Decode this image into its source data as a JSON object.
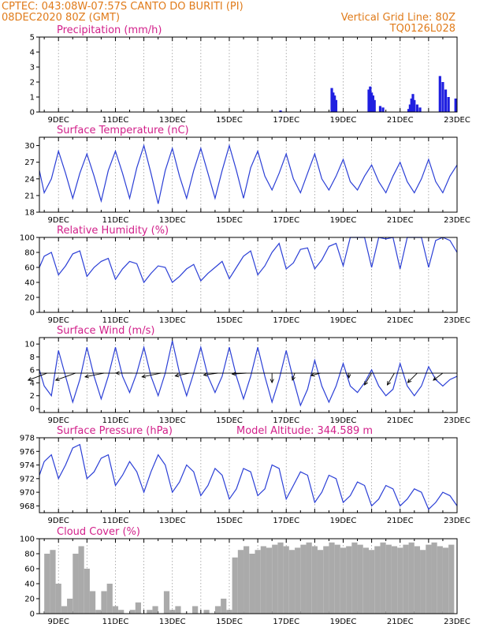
{
  "header": {
    "left_line1": "CPTEC:   043:08W-07:57S   CANTO DO BURITI (PI)",
    "left_line2": "08DEC2020 80Z (GMT)",
    "right_line1": "Vertical Grid Line: 80Z",
    "right_line2": "TQ0126L028"
  },
  "colors": {
    "header": "#e07b1a",
    "title": "#d2208a",
    "line": "#2b3fd6",
    "precip": "#1f1fe0",
    "cloud": "#aaaaaa"
  },
  "chart_data": [
    {
      "type": "bar",
      "title": "Precipitation (mm/h)",
      "ylim": [
        0,
        5
      ],
      "yticks": [
        "0",
        "1",
        "2",
        "3",
        "4",
        "5"
      ],
      "xticks": [
        "9DEC",
        "11DEC",
        "13DEC",
        "15DEC",
        "17DEC",
        "19DEC",
        "21DEC",
        "23DEC"
      ],
      "xlim_days": [
        8.33,
        23.0
      ],
      "x_days": [
        16.8,
        18.6,
        18.65,
        18.7,
        18.75,
        19.9,
        19.95,
        20.0,
        20.05,
        20.1,
        20.3,
        20.4,
        21.3,
        21.35,
        21.4,
        21.45,
        21.5,
        21.6,
        21.7,
        22.4,
        22.5,
        22.6,
        22.7,
        22.95
      ],
      "values": [
        0.1,
        1.6,
        1.3,
        1.1,
        0.8,
        1.5,
        1.7,
        1.3,
        1.1,
        0.8,
        0.4,
        0.3,
        0.2,
        0.5,
        0.9,
        1.2,
        0.8,
        0.5,
        0.3,
        2.4,
        2.0,
        1.5,
        1.0,
        0.9
      ]
    },
    {
      "type": "line",
      "title": "Surface Temperature (nC)",
      "ylim": [
        18,
        31.5
      ],
      "yticks": [
        "18",
        "21",
        "24",
        "27",
        "30"
      ],
      "xticks": [
        "9DEC",
        "11DEC",
        "13DEC",
        "15DEC",
        "17DEC",
        "19DEC",
        "21DEC",
        "23DEC"
      ],
      "x_days": [
        8.33,
        8.5,
        8.75,
        9.0,
        9.25,
        9.5,
        9.75,
        10.0,
        10.25,
        10.5,
        10.75,
        11.0,
        11.25,
        11.5,
        11.75,
        12.0,
        12.25,
        12.5,
        12.75,
        13.0,
        13.25,
        13.5,
        13.75,
        14.0,
        14.25,
        14.5,
        14.75,
        15.0,
        15.25,
        15.5,
        15.75,
        16.0,
        16.25,
        16.5,
        16.75,
        17.0,
        17.25,
        17.5,
        17.75,
        18.0,
        18.25,
        18.5,
        18.75,
        19.0,
        19.25,
        19.5,
        19.75,
        20.0,
        20.25,
        20.5,
        20.75,
        21.0,
        21.25,
        21.5,
        21.75,
        22.0,
        22.25,
        22.5,
        22.75,
        23.0
      ],
      "values": [
        25.5,
        21.5,
        24.0,
        29.0,
        25.0,
        20.5,
        25.0,
        28.5,
        24.5,
        20.0,
        25.5,
        29.0,
        25.0,
        20.5,
        26.0,
        30.0,
        25.0,
        19.5,
        25.5,
        29.5,
        24.5,
        20.5,
        25.5,
        29.5,
        25.0,
        20.5,
        25.5,
        30.0,
        25.5,
        20.5,
        26.0,
        29.0,
        24.5,
        22.0,
        25.0,
        28.5,
        24.0,
        21.5,
        25.0,
        28.5,
        24.0,
        22.0,
        24.5,
        27.5,
        23.5,
        22.0,
        24.5,
        26.5,
        23.5,
        21.5,
        24.5,
        27.0,
        23.5,
        21.5,
        24.0,
        27.5,
        23.5,
        21.5,
        24.5,
        26.5
      ]
    },
    {
      "type": "line",
      "title": "Relative Humidity (%)",
      "ylim": [
        0,
        100
      ],
      "yticks": [
        "0",
        "20",
        "40",
        "60",
        "80",
        "100"
      ],
      "xticks": [
        "9DEC",
        "11DEC",
        "13DEC",
        "15DEC",
        "17DEC",
        "19DEC",
        "21DEC",
        "23DEC"
      ],
      "x_days": [
        8.33,
        8.5,
        8.75,
        9.0,
        9.25,
        9.5,
        9.75,
        10.0,
        10.25,
        10.5,
        10.75,
        11.0,
        11.25,
        11.5,
        11.75,
        12.0,
        12.25,
        12.5,
        12.75,
        13.0,
        13.25,
        13.5,
        13.75,
        14.0,
        14.25,
        14.5,
        14.75,
        15.0,
        15.25,
        15.5,
        15.75,
        16.0,
        16.25,
        16.5,
        16.75,
        17.0,
        17.25,
        17.5,
        17.75,
        18.0,
        18.25,
        18.5,
        18.75,
        19.0,
        19.25,
        19.5,
        19.75,
        20.0,
        20.25,
        20.5,
        20.75,
        21.0,
        21.25,
        21.5,
        21.75,
        22.0,
        22.25,
        22.5,
        22.75,
        23.0
      ],
      "values": [
        60,
        75,
        80,
        50,
        62,
        78,
        82,
        48,
        60,
        68,
        72,
        44,
        58,
        68,
        65,
        40,
        52,
        62,
        60,
        40,
        48,
        58,
        64,
        42,
        52,
        60,
        68,
        45,
        60,
        75,
        82,
        50,
        62,
        80,
        92,
        58,
        66,
        84,
        86,
        58,
        70,
        88,
        92,
        62,
        100,
        100,
        100,
        60,
        100,
        98,
        100,
        58,
        100,
        100,
        100,
        60,
        96,
        100,
        96,
        80
      ]
    },
    {
      "type": "line",
      "title": "Surface Wind (m/s)",
      "ylim": [
        -0.6,
        11
      ],
      "yticks": [
        "0",
        "2",
        "4",
        "6",
        "8",
        "10"
      ],
      "xticks": [
        "9DEC",
        "11DEC",
        "13DEC",
        "15DEC",
        "17DEC",
        "19DEC",
        "21DEC",
        "23DEC"
      ],
      "x_days": [
        8.33,
        8.5,
        8.75,
        9.0,
        9.25,
        9.5,
        9.75,
        10.0,
        10.25,
        10.5,
        10.75,
        11.0,
        11.25,
        11.5,
        11.75,
        12.0,
        12.25,
        12.5,
        12.75,
        13.0,
        13.25,
        13.5,
        13.75,
        14.0,
        14.25,
        14.5,
        14.75,
        15.0,
        15.25,
        15.5,
        15.75,
        16.0,
        16.25,
        16.5,
        16.75,
        17.0,
        17.25,
        17.5,
        17.75,
        18.0,
        18.25,
        18.5,
        18.75,
        19.0,
        19.25,
        19.5,
        19.75,
        20.0,
        20.25,
        20.5,
        20.75,
        21.0,
        21.25,
        21.5,
        21.75,
        22.0,
        22.25,
        22.5,
        22.75,
        23.0
      ],
      "values": [
        6.0,
        3.5,
        2.0,
        9.0,
        5.0,
        1.0,
        4.5,
        9.5,
        5.0,
        1.5,
        5.0,
        9.5,
        5.0,
        2.5,
        5.5,
        9.5,
        5.0,
        2.0,
        5.5,
        10.5,
        5.5,
        2.0,
        5.5,
        9.5,
        5.0,
        2.5,
        5.0,
        9.5,
        5.0,
        1.5,
        5.0,
        9.5,
        5.0,
        1.0,
        4.5,
        9.0,
        4.5,
        0.5,
        3.0,
        7.5,
        3.5,
        1.0,
        3.5,
        7.0,
        3.5,
        2.5,
        4.0,
        6.0,
        3.5,
        2.0,
        3.0,
        7.0,
        3.5,
        2.0,
        3.5,
        6.5,
        4.5,
        3.5,
        4.5,
        5.0
      ],
      "vector_ref_y": 5.5,
      "vectors": [
        {
          "day": 8.6,
          "u": -4.0,
          "v": -1.5
        },
        {
          "day": 9.6,
          "u": -4.2,
          "v": -1.5
        },
        {
          "day": 10.6,
          "u": -4.0,
          "v": -0.8
        },
        {
          "day": 11.6,
          "u": -3.5,
          "v": 0.0
        },
        {
          "day": 12.6,
          "u": -4.0,
          "v": -0.8
        },
        {
          "day": 13.6,
          "u": -3.0,
          "v": -0.6
        },
        {
          "day": 14.6,
          "u": -3.0,
          "v": -0.4
        },
        {
          "day": 15.6,
          "u": -3.0,
          "v": -0.2
        },
        {
          "day": 16.5,
          "u": 0.0,
          "v": -2.0
        },
        {
          "day": 17.3,
          "u": -0.5,
          "v": -1.5
        },
        {
          "day": 18.2,
          "u": -2.0,
          "v": -0.5
        },
        {
          "day": 19.2,
          "u": 0.0,
          "v": -1.0
        },
        {
          "day": 20.0,
          "u": -1.5,
          "v": -2.5
        },
        {
          "day": 20.8,
          "u": -1.5,
          "v": -2.5
        },
        {
          "day": 21.6,
          "u": -2.0,
          "v": -2.0
        },
        {
          "day": 22.5,
          "u": -2.0,
          "v": -1.5
        }
      ]
    },
    {
      "type": "line",
      "title": "Surface Pressure (hPa)",
      "subtitle": "Model Altitude: 344.589  m",
      "ylim": [
        967,
        978
      ],
      "yticks": [
        "968",
        "970",
        "972",
        "974",
        "976",
        "978"
      ],
      "xticks": [
        "9DEC",
        "11DEC",
        "13DEC",
        "15DEC",
        "17DEC",
        "19DEC",
        "21DEC",
        "23DEC"
      ],
      "x_days": [
        8.33,
        8.5,
        8.75,
        9.0,
        9.25,
        9.5,
        9.75,
        10.0,
        10.25,
        10.5,
        10.75,
        11.0,
        11.25,
        11.5,
        11.75,
        12.0,
        12.25,
        12.5,
        12.75,
        13.0,
        13.25,
        13.5,
        13.75,
        14.0,
        14.25,
        14.5,
        14.75,
        15.0,
        15.25,
        15.5,
        15.75,
        16.0,
        16.25,
        16.5,
        16.75,
        17.0,
        17.25,
        17.5,
        17.75,
        18.0,
        18.25,
        18.5,
        18.75,
        19.0,
        19.25,
        19.5,
        19.75,
        20.0,
        20.25,
        20.5,
        20.75,
        21.0,
        21.25,
        21.5,
        21.75,
        22.0,
        22.25,
        22.5,
        22.75,
        23.0
      ],
      "values": [
        972.5,
        974.5,
        975.5,
        972.0,
        974.0,
        976.5,
        977.0,
        972.0,
        973.0,
        975.0,
        975.5,
        971.0,
        972.5,
        974.5,
        973.0,
        970.0,
        973.0,
        975.5,
        974.0,
        970.0,
        971.5,
        974.0,
        973.0,
        969.5,
        971.0,
        973.5,
        972.5,
        969.0,
        970.5,
        973.5,
        973.0,
        969.5,
        970.5,
        974.0,
        973.5,
        969.0,
        971.0,
        973.0,
        972.5,
        968.5,
        970.0,
        972.5,
        972.0,
        968.5,
        969.5,
        971.5,
        971.0,
        968.0,
        969.0,
        971.0,
        970.5,
        968.0,
        969.0,
        970.5,
        970.0,
        967.5,
        968.5,
        970.0,
        969.5,
        968.0
      ]
    },
    {
      "type": "bar",
      "title": "Cloud Cover (%)",
      "ylim": [
        0,
        100
      ],
      "yticks": [
        "0",
        "20",
        "40",
        "60",
        "80",
        "100"
      ],
      "xticks": [
        "9DEC",
        "11DEC",
        "13DEC",
        "15DEC",
        "17DEC",
        "19DEC",
        "21DEC",
        "23DEC"
      ],
      "x_days": [
        8.4,
        8.6,
        8.8,
        9.0,
        9.2,
        9.4,
        9.6,
        9.8,
        10.0,
        10.2,
        10.4,
        10.6,
        10.8,
        11.0,
        11.2,
        11.4,
        11.6,
        11.8,
        12.0,
        12.2,
        12.4,
        12.6,
        12.8,
        13.0,
        13.2,
        13.4,
        13.6,
        13.8,
        14.0,
        14.2,
        14.4,
        14.6,
        14.8,
        15.0,
        15.2,
        15.4,
        15.6,
        15.8,
        16.0,
        16.2,
        16.4,
        16.6,
        16.8,
        17.0,
        17.2,
        17.4,
        17.6,
        17.8,
        18.0,
        18.2,
        18.4,
        18.6,
        18.8,
        19.0,
        19.2,
        19.4,
        19.6,
        19.8,
        20.0,
        20.2,
        20.4,
        20.6,
        20.8,
        21.0,
        21.2,
        21.4,
        21.6,
        21.8,
        22.0,
        22.2,
        22.4,
        22.6,
        22.8
      ],
      "values": [
        0,
        80,
        85,
        40,
        10,
        20,
        80,
        90,
        60,
        30,
        5,
        30,
        40,
        10,
        5,
        0,
        5,
        15,
        0,
        5,
        10,
        0,
        30,
        5,
        10,
        0,
        0,
        10,
        0,
        5,
        0,
        10,
        20,
        5,
        75,
        85,
        90,
        80,
        85,
        90,
        88,
        92,
        95,
        90,
        85,
        88,
        92,
        95,
        90,
        85,
        90,
        95,
        92,
        88,
        90,
        95,
        92,
        88,
        85,
        90,
        95,
        92,
        90,
        88,
        92,
        95,
        90,
        85,
        92,
        95,
        90,
        88,
        92
      ]
    }
  ]
}
